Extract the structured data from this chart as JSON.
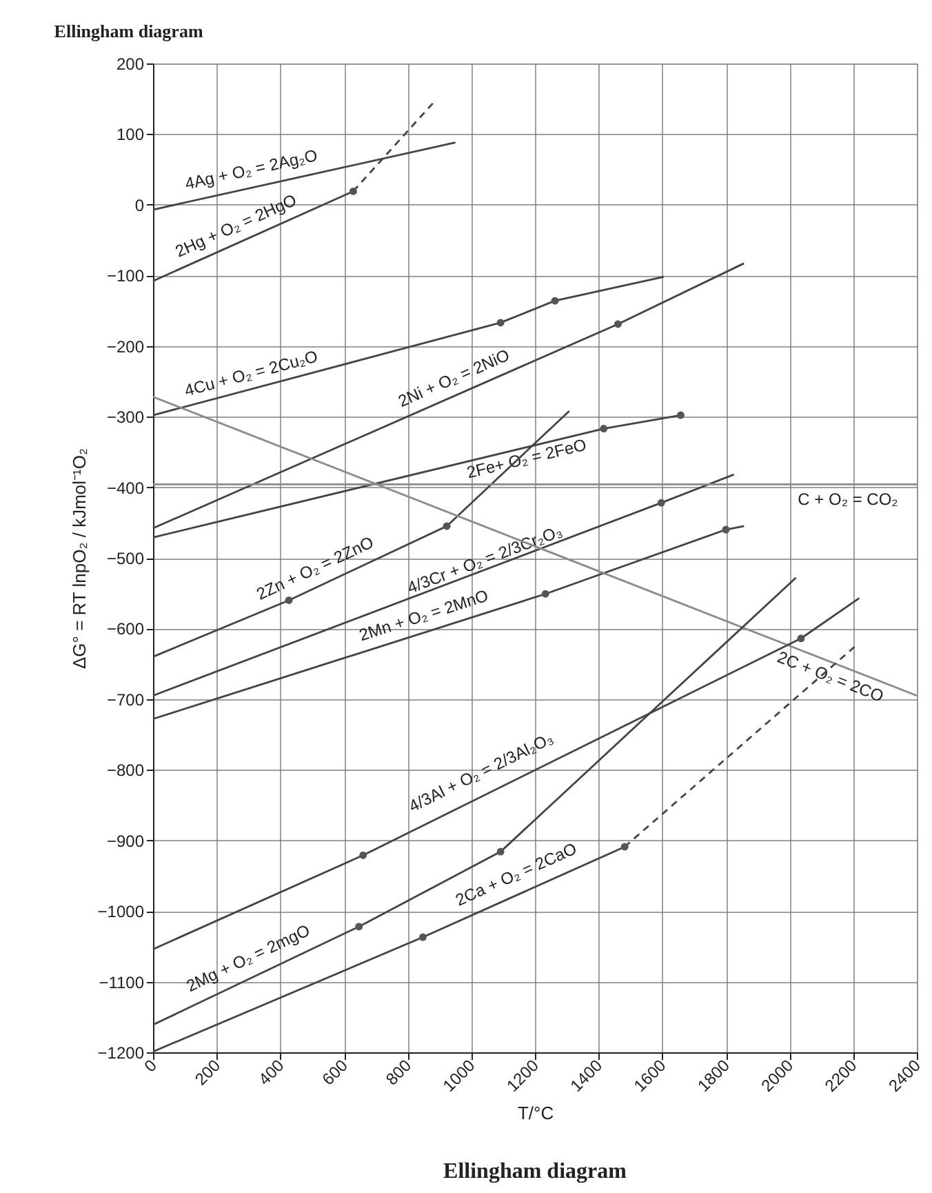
{
  "chart_data": {
    "type": "line",
    "title": "Ellingham diagram",
    "xlabel": "T/°C",
    "ylabel": "ΔG° = RT lnpO₂ / kJmol⁻¹O₂",
    "xlim": [
      0,
      2400
    ],
    "xticks": [
      0,
      200,
      400,
      600,
      800,
      1000,
      1200,
      1400,
      1600,
      1800,
      2000,
      2200,
      2400
    ],
    "ylim": [
      -1200,
      200
    ],
    "yticks": [
      -1200,
      -1100,
      -1000,
      -900,
      -800,
      -700,
      -600,
      -500,
      -400,
      -300,
      -200,
      -100,
      0,
      100,
      200
    ],
    "grid": true,
    "marker": "none",
    "line_style": "solid",
    "series": [
      {
        "name": "4Ag + O₂ = 2Ag₂O",
        "color": "#444444",
        "x": [
          0,
          950
        ],
        "values": [
          -7,
          88
        ]
      },
      {
        "name": "2Hg + O₂ = 2HgO",
        "color": "#444444",
        "x": [
          0,
          629
        ],
        "values": [
          -108,
          19
        ]
      },
      {
        "name": "4Cu + O₂ = 2Cu₂O",
        "color": "#444444",
        "x": [
          0,
          1092,
          1263,
          1605
        ],
        "values": [
          -298,
          -167,
          -136,
          -102
        ]
      },
      {
        "name": "2Ni + O₂ = 2NiO",
        "color": "#444444",
        "x": [
          0,
          1461,
          1857
        ],
        "values": [
          -458,
          -169,
          -83
        ]
      },
      {
        "name": "2Fe+ O₂ = 2FeO",
        "color": "#444444",
        "x": [
          0,
          1416,
          1658
        ],
        "values": [
          -471,
          -317,
          -298
        ]
      },
      {
        "name": "2Zn + O₂ = 2ZnO",
        "color": "#444444",
        "x": [
          0,
          427,
          923,
          1308
        ],
        "values": [
          -640,
          -560,
          -455,
          -292
        ]
      },
      {
        "name": "4/3Cr + O₂ = 2/3Cr₂O₃",
        "color": "#444444",
        "x": [
          0,
          1597,
          1825
        ],
        "values": [
          -695,
          -422,
          -382
        ]
      },
      {
        "name": "2Mn + O₂ = 2MnO",
        "color": "#444444",
        "x": [
          0,
          1233,
          1800,
          1857
        ],
        "values": [
          -728,
          -551,
          -460,
          -455
        ]
      },
      {
        "name": "C + O₂ = CO₂",
        "color": "#8a8a8a",
        "x": [
          0,
          2400
        ],
        "values": [
          -396,
          -396
        ]
      },
      {
        "name": "2C + O₂ = 2CO",
        "color": "#8a8a8a",
        "x": [
          0,
          2400
        ],
        "values": [
          -272,
          -695
        ]
      },
      {
        "name": "4/3Al + O₂ = 2/3Al₂O₃",
        "color": "#444444",
        "x": [
          0,
          660,
          2036,
          2219
        ],
        "values": [
          -1054,
          -921,
          -614,
          -557
        ]
      },
      {
        "name": "2Mg + O₂ = 2mgO",
        "color": "#444444",
        "x": [
          0,
          647,
          1092,
          2020
        ],
        "values": [
          -1161,
          -1022,
          -916,
          -528
        ]
      },
      {
        "name": "2Ca + O₂ = 2CaO",
        "color": "#444444",
        "x": [
          0,
          848,
          1482
        ],
        "values": [
          -1199,
          -1037,
          -909
        ]
      },
      {
        "color": "#444444",
        "x": [
          629,
          880
        ],
        "values": [
          19,
          144
        ],
        "line_style": "dashed"
      },
      {
        "color": "#444444",
        "x": [
          1482,
          2204
        ],
        "values": [
          -909,
          -626
        ],
        "line_style": "dashed"
      },
      {
        "type": "scatter",
        "marker": "circle",
        "color": "#555555",
        "x": [
          629,
          1092,
          1263,
          1461,
          1416,
          1658,
          427,
          923,
          1597,
          1233,
          1800,
          2036,
          660,
          647,
          1092,
          848,
          1482
        ],
        "values": [
          19,
          -167,
          -136,
          -169,
          -317,
          -298,
          -560,
          -455,
          -422,
          -551,
          -460,
          -614,
          -921,
          -1022,
          -916,
          -1037,
          -909
        ]
      }
    ],
    "annotations": [
      "Ellingham diagram"
    ]
  }
}
